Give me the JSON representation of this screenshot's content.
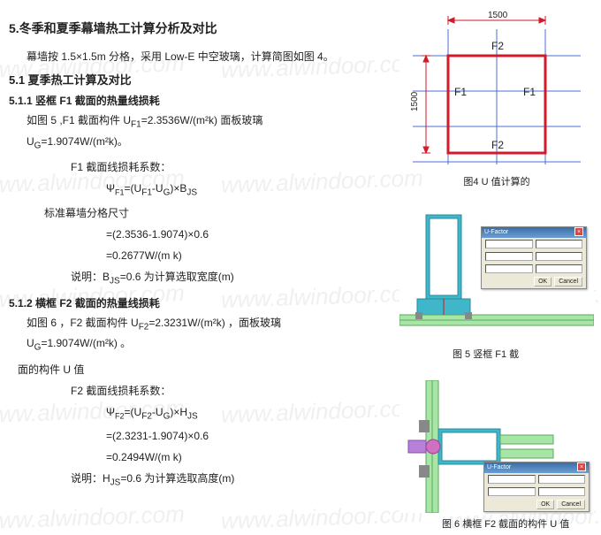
{
  "watermark_text": "www.alwindoor.com",
  "section5_title": "5.冬季和夏季幕墙热工计算分析及对比",
  "intro": "幕墙按 1.5×1.5m 分格，采用 Low-E 中空玻璃，计算简图如图 4。",
  "section51_title": "5.1 夏季热工计算及对比",
  "section511_title": "5.1.1 竖框 F1 截面的热量线损耗",
  "p511_body": "如图 5 ,F1 截面构件 U<sub>F1</sub>=2.3536W/(m²k) 面板玻璃 U<sub>G</sub>=1.9074W/(m²k)。",
  "p511_line1": "F1 截面线损耗系数：",
  "p511_formula1_label": "Ψ",
  "p511_formula1_sub": "F1",
  "p511_formula1_rhs": "=(U<sub>F1</sub>-U<sub>G</sub>)×B<sub>JS</sub>",
  "p511_std": "标准幕墙分格尺寸",
  "p511_formula2": "=(2.3536-1.9074)×0.6",
  "p511_formula3": "=0.2677W/(m k)",
  "p511_note": "说明：B<sub>JS</sub>=0.6 为计算选取宽度(m)",
  "section512_title": "5.1.2 横框 F2 截面的热量线损耗",
  "p512_body": "如图 6 ，F2 截面构件 U<sub>F2</sub>=2.3231W/(m²k) ，面板玻璃 U<sub>G</sub>=1.9074W/(m²k) 。",
  "p512_small": "面的构件 U 值",
  "p512_line1": "F2 截面线损耗系数：",
  "p512_formula1_label": "Ψ",
  "p512_formula1_sub": "F2",
  "p512_formula1_rhs": "=(U<sub>F2</sub>-U<sub>G</sub>)×H<sub>JS</sub>",
  "p512_formula2": "=(2.3231-1.9074)×0.6",
  "p512_formula3": "=0.2494W/(m k)",
  "p512_note": "说明：H<sub>JS</sub>=0.6 为计算选取高度(m)",
  "fig4": {
    "caption": "图4  U 值计算的",
    "dim1": "1500",
    "dim2": "1500",
    "labels": {
      "F1_left": "F1",
      "F1_right": "F1",
      "F2_top": "F2",
      "F2_bot": "F2"
    },
    "colors": {
      "frame": "#d11a2a",
      "grid": "#4a6fd4",
      "dim": "#d11a2a",
      "text": "#222"
    }
  },
  "fig5": {
    "caption": "图 5  竖框 F1 截",
    "colors": {
      "mullion": "#3fb6c9",
      "glass": "#a8e6a8",
      "seal": "#888",
      "steel": "#7ea3d4"
    }
  },
  "fig5b_text": "面的构件 U 值",
  "fig6": {
    "caption": "图 6  横框 F2 截面的构件 U 值",
    "colors": {
      "mullion": "#3fb6c9",
      "glass": "#a8e6a8",
      "seal": "#d070c0",
      "steel": "#7ea3d4",
      "gasket": "#b880d8"
    }
  },
  "dialog": {
    "title": "U-Factor",
    "btn_ok": "OK",
    "btn_cancel": "Cancel"
  }
}
